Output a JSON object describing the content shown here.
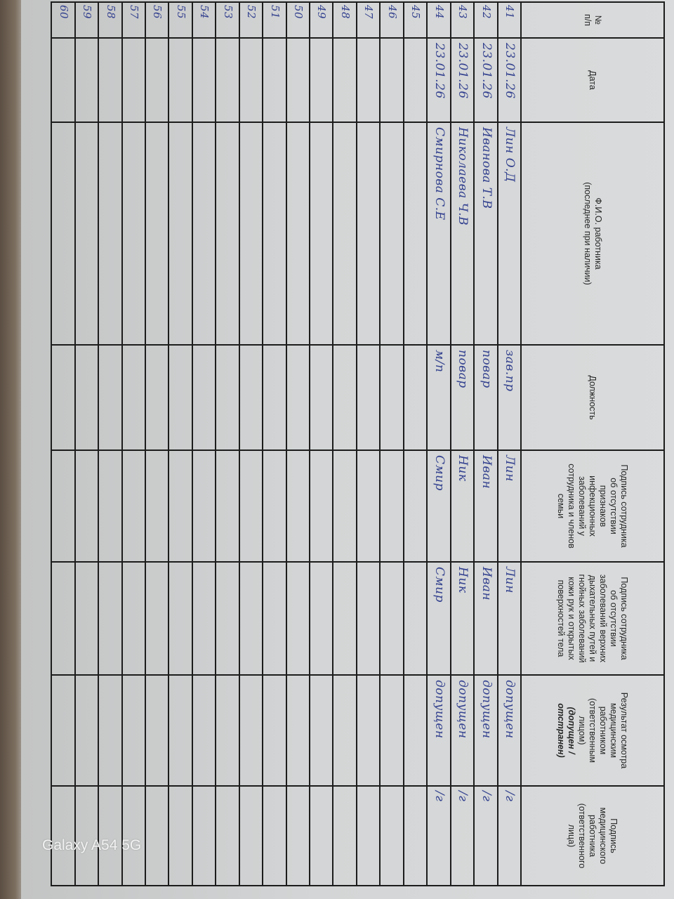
{
  "headers": [
    {
      "text": "№\nп/п"
    },
    {
      "text": "Дата"
    },
    {
      "text": "Ф.И.О. работника\n(последнее при наличии)"
    },
    {
      "text": "Должность"
    },
    {
      "text": "Подпись сотрудника\nоб отсутствии\nпризнаков\nинфекционных\nзаболеваний у\nсотрудника и членов\nсемьи"
    },
    {
      "text": "Подпись сотрудника\nоб отсутствии\nзаболеваний верхних\nдыхательных путей и\nгнойных заболеваний\nкожи рук и открытых\nповерхностей тела"
    },
    {
      "text": "Результат осмотра\nмедицинским\nработником\n(ответственным\nлицом)",
      "bold_italic": "(допущен /\nотстранен)"
    },
    {
      "text": "Подпись\nмедицинского\nработника\n(ответственного\nлица)"
    }
  ],
  "rows": [
    {
      "num": "41",
      "date": "23.01.26",
      "name": "Лин О.Д",
      "position": "зав.пр",
      "sign1": "Лин",
      "sign2": "Лин",
      "result": "допущен",
      "med_sign": "/г"
    },
    {
      "num": "42",
      "date": "23.01.26",
      "name": "Иванова Т.В",
      "position": "повар",
      "sign1": "Иван",
      "sign2": "Иван",
      "result": "допущен",
      "med_sign": "/г"
    },
    {
      "num": "43",
      "date": "23.01.26",
      "name": "Николаева Ч.В",
      "position": "повар",
      "sign1": "Ник",
      "sign2": "Ник",
      "result": "допущен",
      "med_sign": "/г"
    },
    {
      "num": "44",
      "date": "23.01.26",
      "name": "Смирнова С.Е",
      "position": "м/п",
      "sign1": "Смир",
      "sign2": "Смир",
      "result": "допущен",
      "med_sign": "/г"
    },
    {
      "num": "45"
    },
    {
      "num": "46"
    },
    {
      "num": "47"
    },
    {
      "num": "48"
    },
    {
      "num": "49"
    },
    {
      "num": "50"
    },
    {
      "num": "51"
    },
    {
      "num": "52"
    },
    {
      "num": "53"
    },
    {
      "num": "54"
    },
    {
      "num": "55"
    },
    {
      "num": "56"
    },
    {
      "num": "57"
    },
    {
      "num": "58"
    },
    {
      "num": "59"
    },
    {
      "num": "60"
    }
  ],
  "watermark": "Galaxy A54 5G",
  "colors": {
    "ink": "#34428f",
    "grid": "#1c1c1c",
    "paper": "#d6d8d9"
  }
}
